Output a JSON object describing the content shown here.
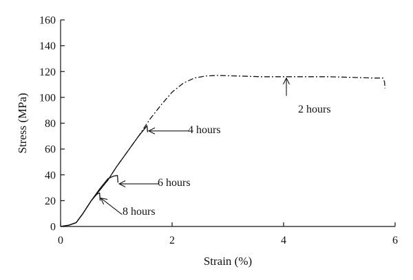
{
  "chart_data": {
    "type": "line",
    "title": "",
    "xlabel": "Strain (%)",
    "ylabel": "Stress (MPa)",
    "xlim": [
      0,
      6
    ],
    "ylim": [
      0,
      160
    ],
    "xticks": [
      0,
      2,
      4,
      6
    ],
    "yticks": [
      0,
      20,
      40,
      60,
      80,
      100,
      120,
      140,
      160
    ],
    "grid": false,
    "legend": "none",
    "series": [
      {
        "name": "2 hours",
        "linestyle": "dashdot",
        "x": [
          0.0,
          0.15,
          0.28,
          0.4,
          0.55,
          0.7,
          0.85,
          1.0,
          1.2,
          1.4,
          1.6,
          1.8,
          2.0,
          2.2,
          2.4,
          2.6,
          2.8,
          3.2,
          3.6,
          4.0,
          4.4,
          4.8,
          5.2,
          5.6,
          5.78,
          5.81,
          5.82
        ],
        "y": [
          0,
          1,
          3,
          10,
          20,
          28,
          36,
          46,
          58,
          70,
          83,
          94,
          104,
          111,
          115,
          116.5,
          117,
          116.5,
          116,
          116,
          116,
          116,
          115.5,
          115,
          115,
          112,
          107
        ]
      },
      {
        "name": "4 hours",
        "linestyle": "solid",
        "x": [
          0.0,
          0.15,
          0.28,
          0.4,
          0.55,
          0.7,
          0.85,
          1.0,
          1.2,
          1.4,
          1.55,
          1.56
        ],
        "y": [
          0,
          1,
          3,
          10,
          20,
          28,
          36,
          46,
          58,
          70,
          78,
          73
        ]
      },
      {
        "name": "6 hours",
        "linestyle": "solid",
        "x": [
          0.0,
          0.15,
          0.28,
          0.4,
          0.55,
          0.7,
          0.85,
          0.95,
          1.02,
          1.03
        ],
        "y": [
          0,
          1,
          3,
          10,
          20,
          29,
          37,
          39,
          39.5,
          34
        ]
      },
      {
        "name": "8 hours",
        "linestyle": "solid",
        "x": [
          0.0,
          0.15,
          0.28,
          0.4,
          0.55,
          0.65,
          0.7,
          0.71
        ],
        "y": [
          0,
          1,
          3,
          10,
          20,
          25,
          26,
          20
        ]
      }
    ],
    "annotations": [
      {
        "text": "2 hours",
        "x": 4.05,
        "y": 115
      },
      {
        "text": "4 hours",
        "x": 1.58,
        "y": 74
      },
      {
        "text": "6 hours",
        "x": 1.05,
        "y": 33
      },
      {
        "text": "8 hours",
        "x": 0.72,
        "y": 22
      }
    ]
  }
}
